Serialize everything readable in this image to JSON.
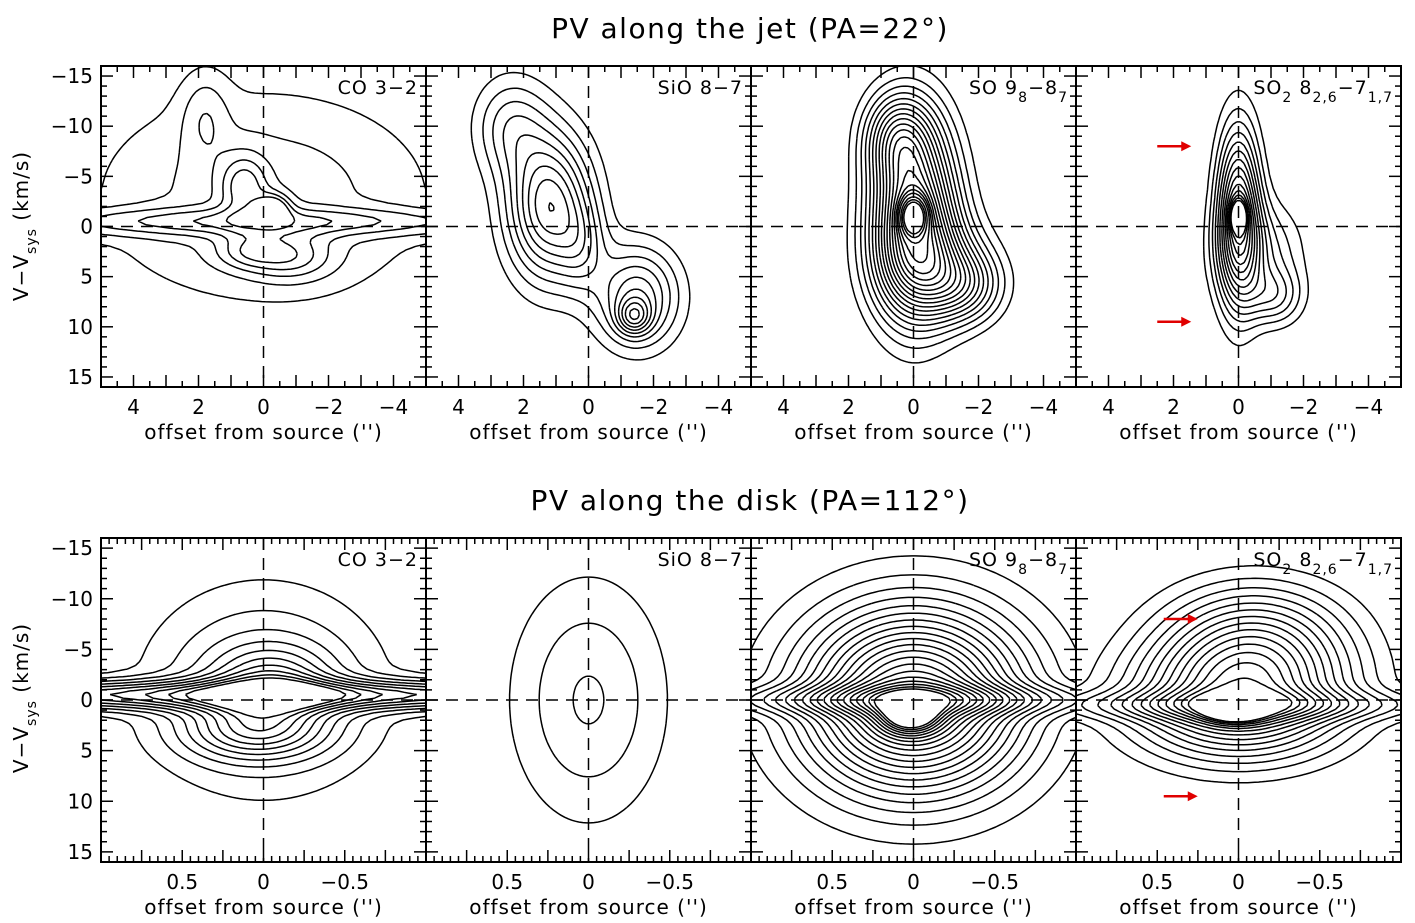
{
  "figure": {
    "row_titles": [
      "PV along the jet (PA=22°)",
      "PV along the disk (PA=112°)"
    ],
    "ylabel": "V−V",
    "ylabel_sub": "sys",
    "ylabel_tail": " (km/s)",
    "xlabel": "offset from source ('')",
    "colors": {
      "contour": "#000000",
      "arrow": "#e00000"
    }
  },
  "chart_data": [
    {
      "type": "contour",
      "row": "jet",
      "title": "CO 3−2",
      "xlim": [
        5,
        -5
      ],
      "ylim": [
        -16,
        16
      ],
      "xticks": [
        4,
        2,
        0,
        -2,
        -4
      ],
      "xtick_labels": [
        "4",
        "2",
        "0",
        "−2",
        "−4"
      ],
      "yticks": [
        -15,
        -10,
        -5,
        0,
        5,
        10,
        15
      ],
      "ytick_labels": [
        "−15",
        "−10",
        "−5",
        "0",
        "5",
        "10",
        "15"
      ],
      "blobs": [
        {
          "x": 0,
          "y": -3,
          "sx": 3.4,
          "sy": 7,
          "a": 0.35
        },
        {
          "x": 0.3,
          "y": -0.5,
          "sx": 6,
          "sy": 1.0,
          "a": 0.45
        },
        {
          "x": 0.6,
          "y": -4,
          "sx": 0.5,
          "sy": 2.2,
          "a": 0.5
        },
        {
          "x": -0.3,
          "y": -1.8,
          "sx": 0.35,
          "sy": 1.0,
          "a": 0.7
        },
        {
          "x": -0.8,
          "y": 3,
          "sx": 0.9,
          "sy": 1.6,
          "a": 0.45
        },
        {
          "x": 0.5,
          "y": 2.5,
          "sx": 0.7,
          "sy": 1.2,
          "a": 0.35
        },
        {
          "x": 1.8,
          "y": -11,
          "sx": 0.5,
          "sy": 3,
          "a": 0.25
        }
      ],
      "levels": [
        0.12,
        0.25,
        0.4,
        0.55,
        0.7,
        0.85
      ],
      "arrows": []
    },
    {
      "type": "contour",
      "row": "jet",
      "title": "SiO 8−7",
      "xlim": [
        5,
        -5
      ],
      "ylim": [
        -16,
        16
      ],
      "xticks": [
        4,
        2,
        0,
        -2,
        -4
      ],
      "xtick_labels": [
        "4",
        "2",
        "0",
        "−2",
        "−4"
      ],
      "yticks": [
        -15,
        -10,
        -5,
        0,
        5,
        10,
        15
      ],
      "ytick_labels": [
        "−15",
        "−10",
        "−5",
        "0",
        "5",
        "10",
        "15"
      ],
      "blobs": [
        {
          "x": 1.2,
          "y": -2,
          "sx": 0.9,
          "sy": 5,
          "a": 0.9
        },
        {
          "x": 2.4,
          "y": -10,
          "sx": 0.8,
          "sy": 3.5,
          "a": 0.35
        },
        {
          "x": -1.5,
          "y": 7,
          "sx": 0.9,
          "sy": 3.5,
          "a": 0.6
        },
        {
          "x": -1.4,
          "y": 9,
          "sx": 0.35,
          "sy": 1.2,
          "a": 0.45
        },
        {
          "x": 0.2,
          "y": 2,
          "sx": 0.5,
          "sy": 3,
          "a": 0.25
        }
      ],
      "levels": [
        0.12,
        0.22,
        0.32,
        0.42,
        0.52,
        0.62,
        0.72,
        0.82,
        0.92
      ],
      "arrows": []
    },
    {
      "type": "contour",
      "row": "jet",
      "title": "SO 9",
      "title_sub1": "8",
      "title_mid": "−8",
      "title_sub2": "7",
      "xlim": [
        5,
        -5
      ],
      "ylim": [
        -16,
        16
      ],
      "xticks": [
        4,
        2,
        0,
        -2,
        -4
      ],
      "xtick_labels": [
        "4",
        "2",
        "0",
        "−2",
        "−4"
      ],
      "yticks": [
        -15,
        -10,
        -5,
        0,
        5,
        10,
        15
      ],
      "ytick_labels": [
        "−15",
        "−10",
        "−5",
        "0",
        "5",
        "10",
        "15"
      ],
      "blobs": [
        {
          "x": 0,
          "y": -1,
          "sx": 0.9,
          "sy": 6.5,
          "a": 0.9
        },
        {
          "x": -0.6,
          "y": 4,
          "sx": 1.1,
          "sy": 3.5,
          "a": 0.35
        },
        {
          "x": 0.5,
          "y": -9,
          "sx": 0.7,
          "sy": 3,
          "a": 0.35
        },
        {
          "x": -1.6,
          "y": 6,
          "sx": 0.8,
          "sy": 2.5,
          "a": 0.3
        },
        {
          "x": 0,
          "y": -1,
          "sx": 0.25,
          "sy": 1.2,
          "a": 0.8
        }
      ],
      "levels": [
        0.08,
        0.14,
        0.2,
        0.26,
        0.32,
        0.38,
        0.44,
        0.5,
        0.56,
        0.62,
        0.68,
        0.74,
        0.8,
        0.86,
        0.92,
        0.98,
        1.05,
        1.15,
        1.25,
        1.35
      ],
      "arrows": []
    },
    {
      "type": "contour",
      "row": "jet",
      "title": "SO",
      "title_sub1": "2",
      "title_mid": " 8",
      "title_sub2": "2,6",
      "title_mid2": "−7",
      "title_sub3": "1,7",
      "xlim": [
        5,
        -5
      ],
      "ylim": [
        -16,
        16
      ],
      "xticks": [
        4,
        2,
        0,
        -2,
        -4
      ],
      "xtick_labels": [
        "4",
        "2",
        "0",
        "−2",
        "−4"
      ],
      "yticks": [
        -15,
        -10,
        -5,
        0,
        5,
        10,
        15
      ],
      "ytick_labels": [
        "−15",
        "−10",
        "−5",
        "0",
        "5",
        "10",
        "15"
      ],
      "blobs": [
        {
          "x": 0,
          "y": -1,
          "sx": 0.45,
          "sy": 6,
          "a": 0.9
        },
        {
          "x": -0.6,
          "y": 2.5,
          "sx": 0.9,
          "sy": 3.5,
          "a": 0.3
        },
        {
          "x": 0,
          "y": -1,
          "sx": 0.15,
          "sy": 1.0,
          "a": 0.7
        },
        {
          "x": -1.1,
          "y": 7,
          "sx": 0.6,
          "sy": 2.0,
          "a": 0.3
        }
      ],
      "levels": [
        0.1,
        0.18,
        0.26,
        0.34,
        0.42,
        0.5,
        0.58,
        0.66,
        0.74,
        0.82,
        0.9,
        0.98,
        1.06,
        1.14
      ],
      "arrows": [
        {
          "x": 1.7,
          "y": -8
        },
        {
          "x": 1.7,
          "y": 9.5
        }
      ]
    },
    {
      "type": "contour",
      "row": "disk",
      "title": "CO 3−2",
      "xlim": [
        1,
        -1
      ],
      "ylim": [
        -16,
        16
      ],
      "xticks": [
        0.5,
        0,
        -0.5
      ],
      "xtick_labels": [
        "0.5",
        "0",
        "−0.5"
      ],
      "yticks": [
        -15,
        -10,
        -5,
        0,
        5,
        10,
        15
      ],
      "ytick_labels": [
        "−15",
        "−10",
        "−5",
        "0",
        "5",
        "10",
        "15"
      ],
      "blobs": [
        {
          "x": 0,
          "y": -1,
          "sx": 0.5,
          "sy": 7,
          "a": 0.4
        },
        {
          "x": 0,
          "y": -0.5,
          "sx": 2.5,
          "sy": 1.0,
          "a": 0.7
        },
        {
          "x": -0.05,
          "y": -1.5,
          "sx": 0.25,
          "sy": 2.5,
          "a": 0.45
        },
        {
          "x": 0.05,
          "y": 3,
          "sx": 0.3,
          "sy": 2,
          "a": 0.5
        }
      ],
      "levels": [
        0.12,
        0.22,
        0.32,
        0.42,
        0.52,
        0.62,
        0.72,
        0.82,
        0.92,
        1.02
      ],
      "arrows": []
    },
    {
      "type": "contour",
      "row": "disk",
      "title": "SiO 8−7",
      "xlim": [
        1,
        -1
      ],
      "ylim": [
        -16,
        16
      ],
      "xticks": [
        0.5,
        0,
        -0.5
      ],
      "xtick_labels": [
        "0.5",
        "0",
        "−0.5"
      ],
      "yticks": [
        -15,
        -10,
        -5,
        0,
        5,
        10,
        15
      ],
      "ytick_labels": [
        "−15",
        "−10",
        "−5",
        "0",
        "5",
        "10",
        "15"
      ],
      "blobs": [
        {
          "x": 0,
          "y": 0,
          "sx": 0.28,
          "sy": 7,
          "a": 0.9
        }
      ],
      "levels": [
        0.2,
        0.5,
        0.85
      ],
      "arrows": []
    },
    {
      "type": "contour",
      "row": "disk",
      "title": "SO 9",
      "title_sub1": "8",
      "title_mid": "−8",
      "title_sub2": "7",
      "xlim": [
        1,
        -1
      ],
      "ylim": [
        -16,
        16
      ],
      "xticks": [
        0.5,
        0,
        -0.5
      ],
      "xtick_labels": [
        "0.5",
        "0",
        "−0.5"
      ],
      "yticks": [
        -15,
        -10,
        -5,
        0,
        5,
        10,
        15
      ],
      "ytick_labels": [
        "−15",
        "−10",
        "−5",
        "0",
        "5",
        "10",
        "15"
      ],
      "blobs": [
        {
          "x": 0,
          "y": 0,
          "sx": 0.45,
          "sy": 6,
          "a": 1.0
        },
        {
          "x": 0,
          "y": 0,
          "sx": 0.9,
          "sy": 1.0,
          "a": 0.3
        },
        {
          "x": 0.02,
          "y": 1.5,
          "sx": 0.12,
          "sy": 1.2,
          "a": 0.5
        }
      ],
      "levels": [
        0.06,
        0.12,
        0.18,
        0.24,
        0.3,
        0.36,
        0.42,
        0.48,
        0.54,
        0.6,
        0.66,
        0.72,
        0.78,
        0.84,
        0.9,
        0.96,
        1.02,
        1.08,
        1.14,
        1.2
      ],
      "arrows": []
    },
    {
      "type": "contour",
      "row": "disk",
      "title": "SO",
      "title_sub1": "2",
      "title_mid": " 8",
      "title_sub2": "2,6",
      "title_mid2": "−7",
      "title_sub3": "1,7",
      "xlim": [
        1,
        -1
      ],
      "ylim": [
        -16,
        16
      ],
      "xticks": [
        0.5,
        0,
        -0.5
      ],
      "xtick_labels": [
        "0.5",
        "0",
        "−0.5"
      ],
      "yticks": [
        -15,
        -10,
        -5,
        0,
        5,
        10,
        15
      ],
      "ytick_labels": [
        "−15",
        "−10",
        "−5",
        "0",
        "5",
        "10",
        "15"
      ],
      "blobs": [
        {
          "x": 0,
          "y": 0,
          "sx": 0.45,
          "sy": 4,
          "a": 0.8
        },
        {
          "x": -0.1,
          "y": -6,
          "sx": 0.4,
          "sy": 4,
          "a": 0.5
        },
        {
          "x": 0,
          "y": 0.5,
          "sx": 0.85,
          "sy": 1.0,
          "a": 0.3
        },
        {
          "x": 0.02,
          "y": 1,
          "sx": 0.12,
          "sy": 0.8,
          "a": 0.5
        }
      ],
      "levels": [
        0.1,
        0.17,
        0.24,
        0.31,
        0.38,
        0.45,
        0.52,
        0.59,
        0.66,
        0.73,
        0.8,
        0.87,
        0.94,
        1.01
      ],
      "arrows": [
        {
          "x": 0.3,
          "y": -8
        },
        {
          "x": 0.3,
          "y": 9.5
        }
      ]
    }
  ]
}
